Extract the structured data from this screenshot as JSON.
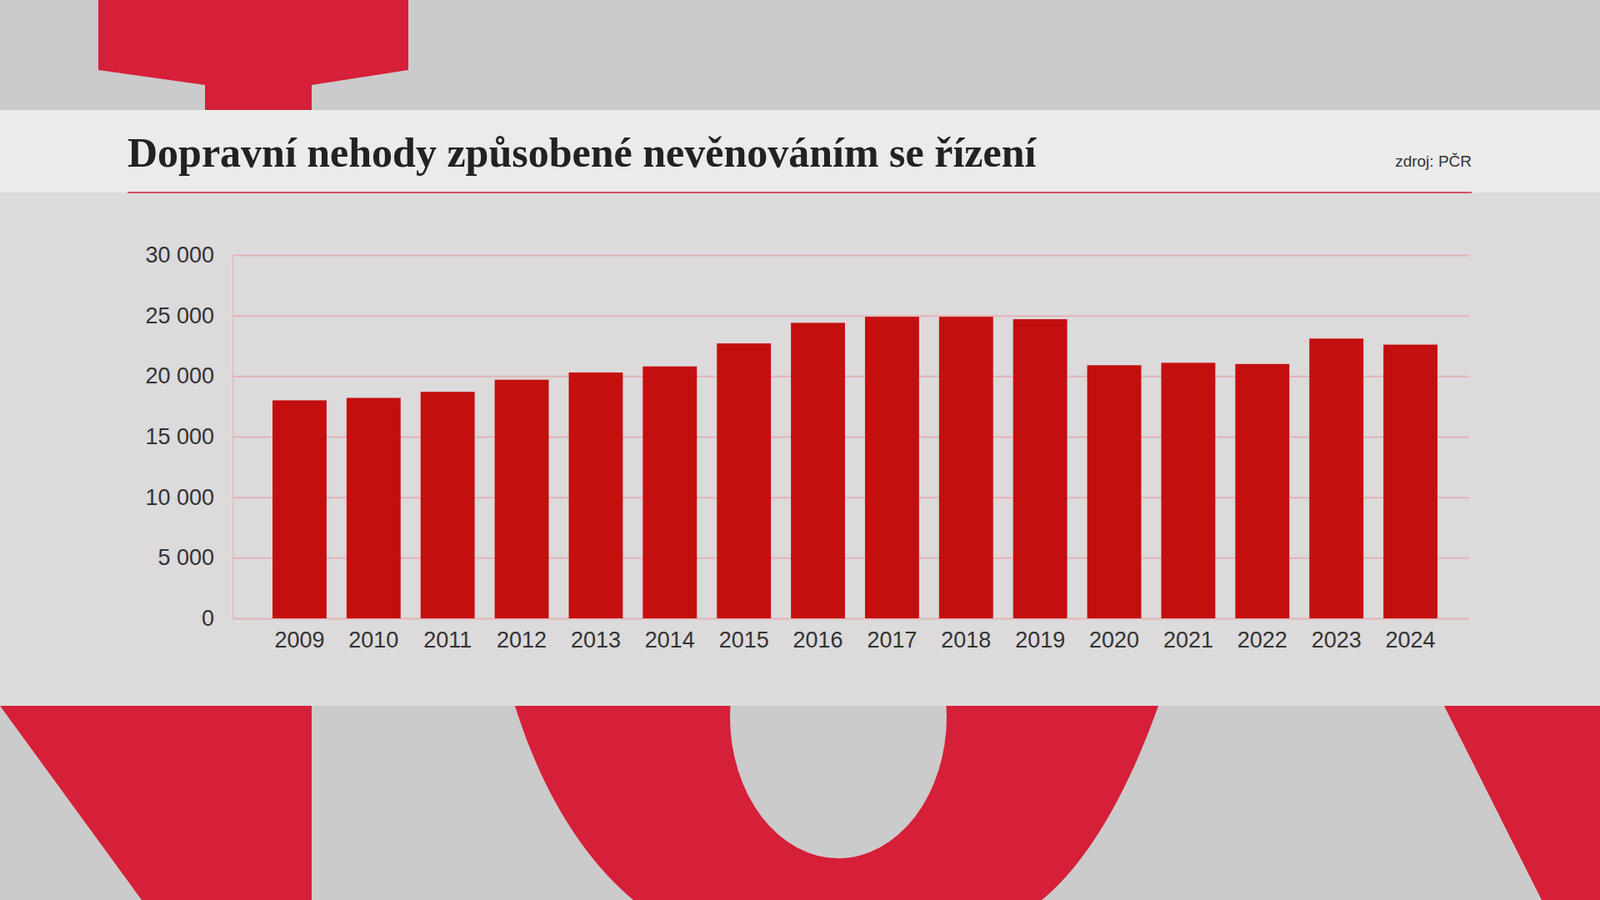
{
  "chart_data": {
    "type": "bar",
    "title": "Dopravní nehody způsobené nevěnováním se řízení",
    "source": "zdroj: PČR",
    "categories": [
      "2009",
      "2010",
      "2011",
      "2012",
      "2013",
      "2014",
      "2015",
      "2016",
      "2017",
      "2018",
      "2019",
      "2020",
      "2021",
      "2022",
      "2023",
      "2024"
    ],
    "values": [
      18000,
      18200,
      18700,
      19700,
      20300,
      20800,
      22700,
      24400,
      24900,
      24900,
      24700,
      20900,
      21100,
      21000,
      23100,
      22600
    ],
    "color": "#c40f0f",
    "ylim": [
      0,
      30000
    ],
    "yticks": [
      0,
      {
        "value": 5000,
        "label": "5 000"
      },
      {
        "value": 10000,
        "label": "10 000"
      },
      {
        "value": 15000,
        "label": "15 000"
      },
      {
        "value": 20000,
        "label": "20 000"
      },
      {
        "value": 25000,
        "label": "25 000"
      },
      {
        "value": 30000,
        "label": "30 000"
      }
    ],
    "grid": true
  }
}
